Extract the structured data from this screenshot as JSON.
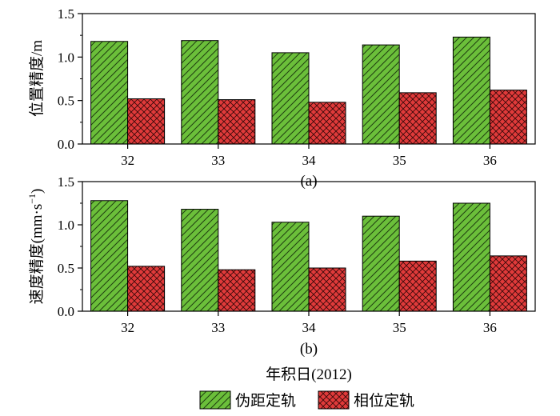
{
  "chart_data": [
    {
      "type": "bar",
      "panel_label": "(a)",
      "ylabel": "位置精度/m",
      "ylim": [
        0,
        1.5
      ],
      "yticks": [
        "0.0",
        "0.5",
        "1.0",
        "1.5"
      ],
      "categories": [
        "32",
        "33",
        "34",
        "35",
        "36"
      ],
      "series": [
        {
          "name": "伪距定轨",
          "values": [
            1.18,
            1.19,
            1.05,
            1.14,
            1.23
          ]
        },
        {
          "name": "相位定轨",
          "values": [
            0.52,
            0.51,
            0.48,
            0.59,
            0.62
          ]
        }
      ]
    },
    {
      "type": "bar",
      "panel_label": "(b)",
      "ylabel": "速度精度(mm·s",
      "ylabel_sup": "−1",
      "ylabel_end": ")",
      "ylim": [
        0,
        1.5
      ],
      "yticks": [
        "0.0",
        "0.5",
        "1.0",
        "1.5"
      ],
      "categories": [
        "32",
        "33",
        "34",
        "35",
        "36"
      ],
      "series": [
        {
          "name": "伪距定轨",
          "values": [
            1.28,
            1.18,
            1.03,
            1.1,
            1.25
          ]
        },
        {
          "name": "相位定轨",
          "values": [
            0.52,
            0.48,
            0.5,
            0.58,
            0.64
          ]
        }
      ]
    }
  ],
  "xlabel": "年积日(2012)",
  "legend": [
    {
      "name": "伪距定轨",
      "color": "#6bbf3a",
      "pattern": "diagonal-hatch"
    },
    {
      "name": "相位定轨",
      "color": "#e03a3a",
      "pattern": "cross-hatch"
    }
  ]
}
